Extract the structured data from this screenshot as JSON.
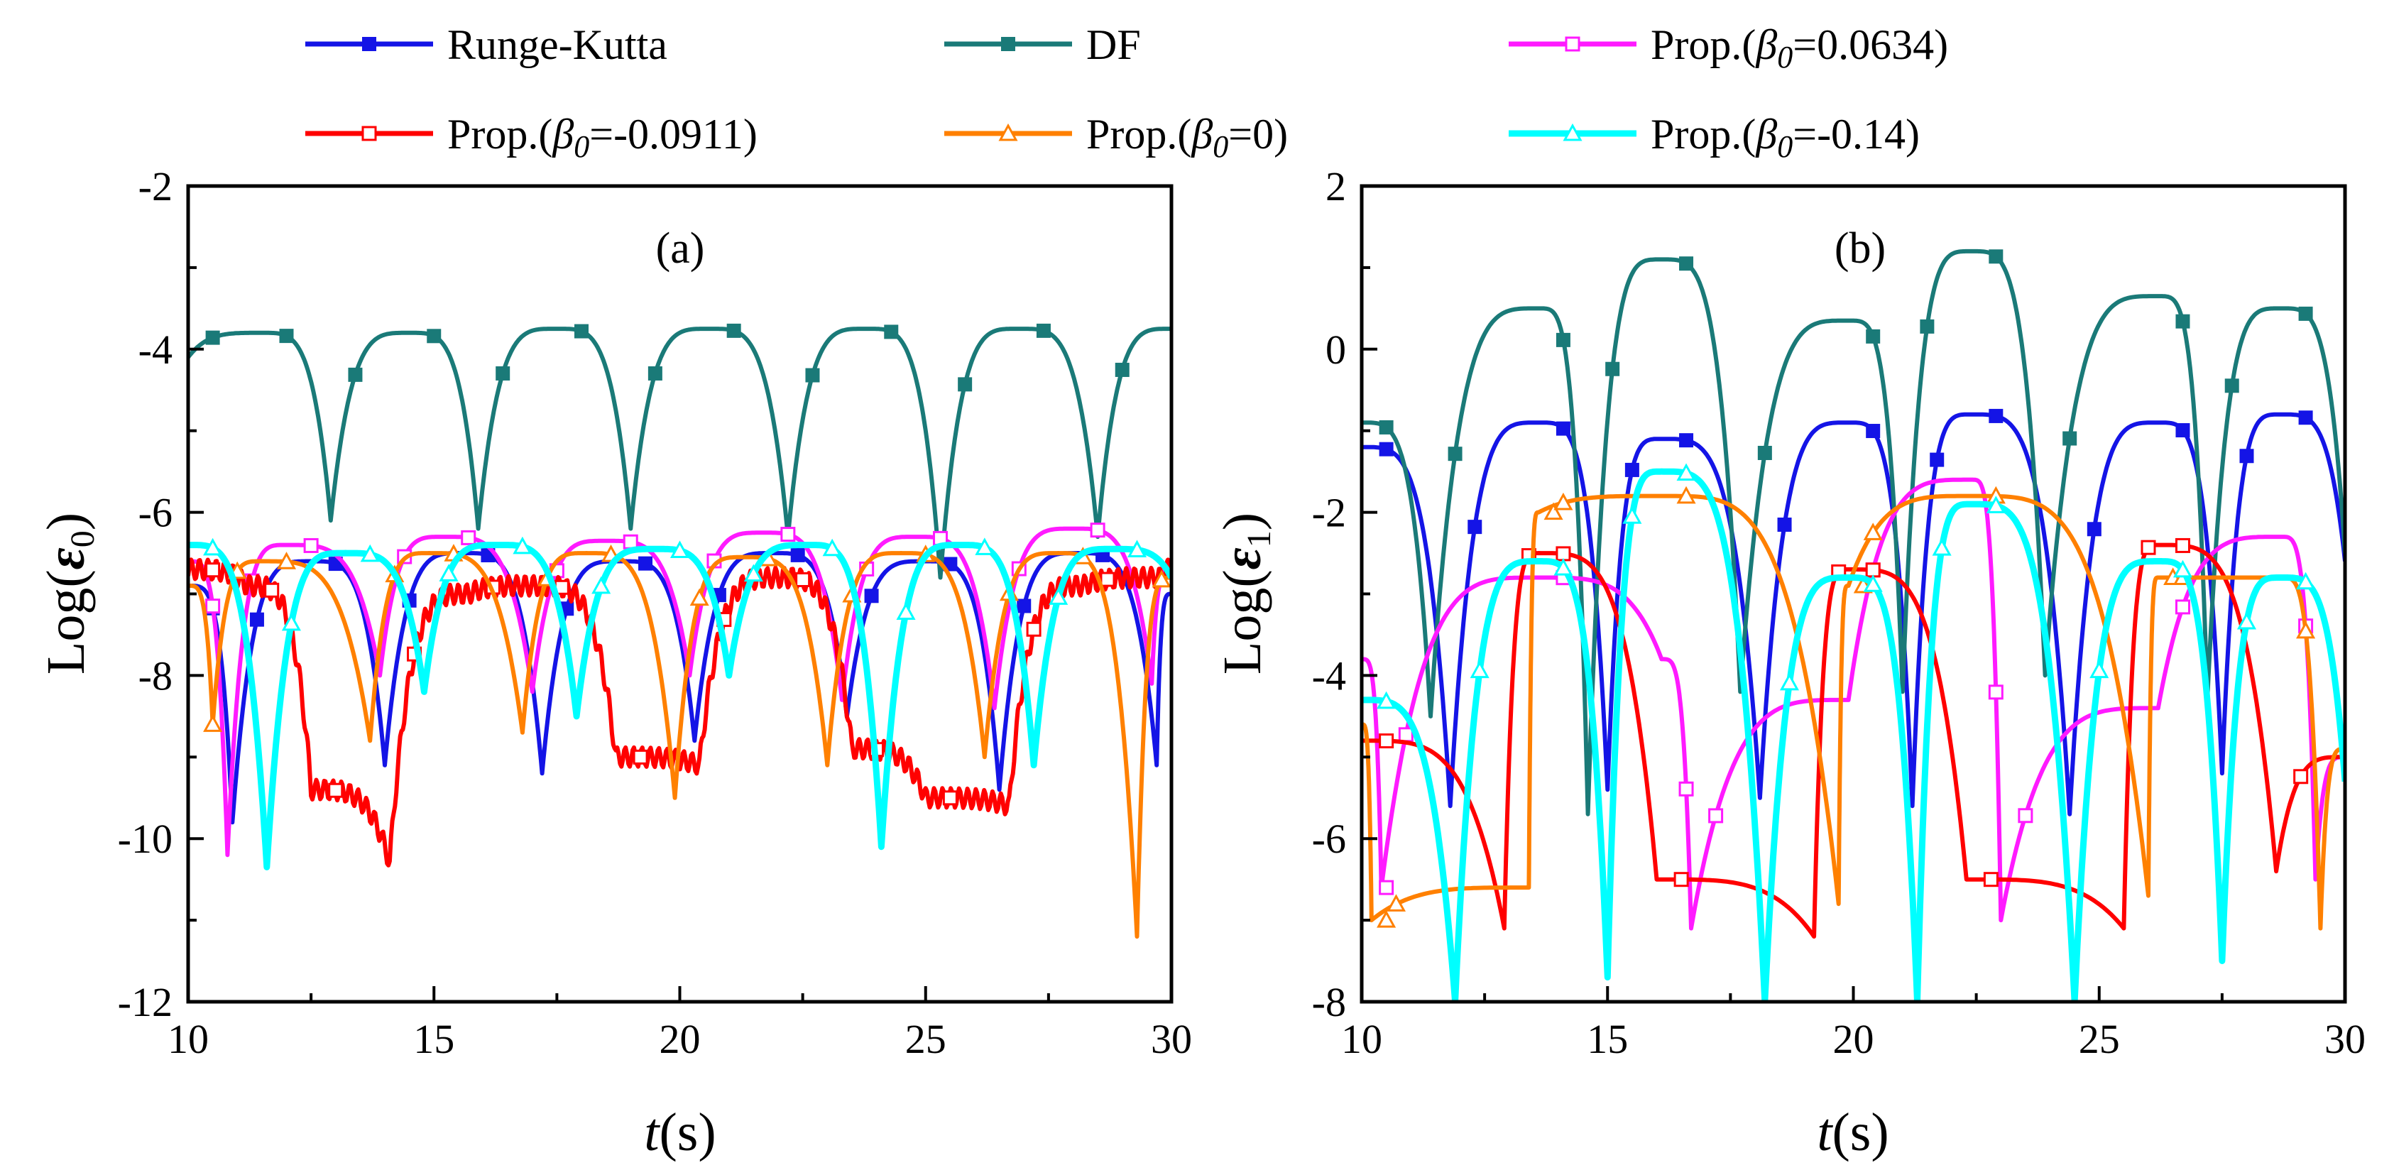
{
  "legend": [
    {
      "label": "Runge-Kutta",
      "color": "#1414e6",
      "marker": "square-filled"
    },
    {
      "label": "DF",
      "color": "#1a7a78",
      "marker": "square-filled"
    },
    {
      "label": "Prop.(β0=0.0634)",
      "color": "#ff1aff",
      "marker": "square-open"
    },
    {
      "label": "Prop.(β0=-0.0911)",
      "color": "#ff0000",
      "marker": "square-open"
    },
    {
      "label": "Prop.(β0=0)",
      "color": "#ff8000",
      "marker": "triangle-open"
    },
    {
      "label": "Prop.(β0=-0.14)",
      "color": "#00ffff",
      "marker": "triangle-open"
    }
  ],
  "chart_data": [
    {
      "type": "line",
      "panel": "(a)",
      "xlabel": "t(s)",
      "ylabel": "Log(ε0)",
      "xlim": [
        10,
        30
      ],
      "ylim": [
        -12,
        -2
      ],
      "xticks": [
        10,
        15,
        20,
        25,
        30
      ],
      "yticks": [
        -2,
        -4,
        -6,
        -8,
        -10,
        -12
      ],
      "series": [
        {
          "name": "Runge-Kutta",
          "period": 3.15,
          "phase": 0.35,
          "base": -6.6,
          "amp": 0.25,
          "dip": -9.5,
          "x_approx": [
            10,
            10.9,
            12.5,
            14.0,
            15.6,
            17.2,
            18.8,
            20.3,
            21.9,
            23.4,
            25.0,
            26.5,
            28.1,
            29.7,
            30
          ],
          "y_approx": [
            -6.9,
            -9.8,
            -6.6,
            -9.1,
            -6.5,
            -9.2,
            -6.6,
            -8.8,
            -6.5,
            -8.5,
            -6.6,
            -9.4,
            -6.5,
            -9.1,
            -7.0
          ]
        },
        {
          "name": "DF",
          "period": 3.15,
          "phase": 0.02,
          "base": -3.75,
          "amp": 0.0,
          "dip": -6.1,
          "x_approx": [
            10,
            11.5,
            12.9,
            14.5,
            15.9,
            17.5,
            19.0,
            20.6,
            22.2,
            23.8,
            25.3,
            26.9,
            28.5,
            30
          ],
          "y_approx": [
            -4.1,
            -3.8,
            -6.1,
            -3.8,
            -6.2,
            -3.75,
            -6.2,
            -3.75,
            -6.3,
            -3.75,
            -6.8,
            -3.75,
            -6.3,
            -3.75
          ]
        },
        {
          "name": "Prop.(β0=0.0634)",
          "period": 3.15,
          "phase": 0.75,
          "base": -6.25,
          "amp": 0.2,
          "dip": -10.2,
          "x_approx": [
            10,
            10.8,
            12.0,
            13.9,
            15.2,
            17.0,
            18.5,
            20.2,
            21.7,
            23.3,
            24.8,
            26.4,
            28.0,
            29.6,
            30
          ],
          "y_approx": [
            -6.6,
            -10.2,
            -6.4,
            -8.0,
            -6.3,
            -8.2,
            -6.35,
            -8.0,
            -6.25,
            -8.3,
            -6.3,
            -8.4,
            -6.2,
            -8.1,
            -6.7
          ]
        },
        {
          "name": "Prop.(β0=-0.0911)",
          "period": 3.15,
          "phase": 1.25,
          "base": -7.0,
          "amp": 0.3,
          "dip": -10.3,
          "x_approx": [
            10,
            11.2,
            12.5,
            14.1,
            15.7,
            17.1,
            18.7,
            20.4,
            22.0,
            23.5,
            25.0,
            26.7,
            28.2,
            29.8,
            30
          ],
          "y_approx": [
            -6.7,
            -6.9,
            -9.4,
            -10.3,
            -7.0,
            -6.9,
            -9.0,
            -9.1,
            -6.8,
            -8.9,
            -9.5,
            -9.6,
            -6.9,
            -6.8,
            -6.7
          ]
        },
        {
          "name": "Prop.(β0=0)",
          "period": 3.15,
          "phase": 0.2,
          "base": -6.55,
          "amp": 0.15,
          "dip": -9.5,
          "x_approx": [
            10,
            10.5,
            11.5,
            13.7,
            14.9,
            16.8,
            18.1,
            19.9,
            21.3,
            23.0,
            24.5,
            26.2,
            27.7,
            29.3,
            30
          ],
          "y_approx": [
            -6.9,
            -8.6,
            -6.6,
            -8.8,
            -6.5,
            -8.7,
            -6.5,
            -9.5,
            -6.55,
            -9.1,
            -6.5,
            -9.0,
            -6.5,
            -11.2,
            -6.8
          ]
        },
        {
          "name": "Prop.(β0=-0.14)",
          "period": 3.15,
          "phase": 1.6,
          "base": -6.45,
          "amp": 0.15,
          "dip": -10.0,
          "x_approx": [
            10,
            11.6,
            13.2,
            14.8,
            16.3,
            17.9,
            19.5,
            21.0,
            22.6,
            24.1,
            25.7,
            27.2,
            28.8,
            30
          ],
          "y_approx": [
            -6.4,
            -10.35,
            -6.5,
            -8.2,
            -6.4,
            -8.5,
            -6.45,
            -8.0,
            -6.4,
            -10.1,
            -6.4,
            -9.1,
            -6.45,
            -6.8
          ]
        }
      ],
      "annotations": []
    },
    {
      "type": "line",
      "panel": "(b)",
      "xlabel": "t(s)",
      "ylabel": "Log(ε1)",
      "xlim": [
        10,
        30
      ],
      "ylim": [
        -8,
        2
      ],
      "xticks": [
        10,
        15,
        20,
        25,
        30
      ],
      "yticks": [
        2,
        0,
        -2,
        -4,
        -6,
        -8
      ],
      "series": [
        {
          "name": "Runge-Kutta",
          "period": 3.15,
          "phase": 0.0,
          "base": -2.2,
          "amp": 0.0,
          "x_approx": [
            10,
            11.8,
            13.6,
            15.0,
            16.1,
            18.1,
            19.9,
            21.2,
            22.4,
            24.4,
            26.2,
            27.5,
            28.7,
            30
          ],
          "y_approx": [
            -1.2,
            -5.6,
            -0.9,
            -5.4,
            -1.1,
            -5.5,
            -0.9,
            -5.6,
            -0.8,
            -5.7,
            -0.9,
            -5.2,
            -0.8,
            -2.6
          ]
        },
        {
          "name": "DF",
          "period": 3.15,
          "phase": 0.0,
          "base": -2.0,
          "amp": 0.0,
          "x_approx": [
            10,
            11.4,
            13.6,
            14.6,
            16.1,
            17.7,
            19.9,
            21.0,
            22.4,
            23.9,
            26.2,
            27.2,
            28.7,
            30
          ],
          "y_approx": [
            -0.9,
            -4.5,
            0.5,
            -5.7,
            1.1,
            -4.2,
            0.35,
            -4.2,
            1.2,
            -4.0,
            0.65,
            -4.3,
            0.5,
            -2.5
          ]
        },
        {
          "name": "Prop.(β0=0.0634)",
          "period": 3.15,
          "phase": 0.0,
          "base": -4.5,
          "amp": 0.0,
          "x_approx": [
            10,
            10.4,
            13.6,
            16.1,
            16.7,
            19.9,
            22.4,
            23.0,
            26.2,
            28.7,
            29.4,
            30
          ],
          "y_approx": [
            -3.8,
            -6.6,
            -2.8,
            -3.8,
            -7.1,
            -4.3,
            -1.6,
            -7.0,
            -4.4,
            -2.3,
            -6.5,
            -5.0
          ]
        },
        {
          "name": "Prop.(β0=-0.0911)",
          "period": 3.15,
          "phase": 0.0,
          "base": -4.9,
          "amp": 0.0,
          "x_approx": [
            10,
            12.9,
            13.6,
            16.0,
            19.2,
            19.9,
            22.3,
            25.5,
            26.2,
            28.6,
            30
          ],
          "y_approx": [
            -4.8,
            -7.1,
            -2.5,
            -6.5,
            -7.2,
            -2.7,
            -6.5,
            -7.1,
            -2.4,
            -6.4,
            -5.0
          ]
        },
        {
          "name": "Prop.(β0=0)",
          "period": 3.15,
          "phase": 0.0,
          "base": -4.8,
          "amp": 0.0,
          "x_approx": [
            10,
            10.2,
            13.4,
            13.6,
            16.1,
            19.7,
            19.9,
            22.4,
            26.0,
            26.2,
            28.7,
            29.5,
            30
          ],
          "y_approx": [
            -4.6,
            -7.0,
            -6.6,
            -2.0,
            -1.8,
            -6.8,
            -2.9,
            -1.8,
            -6.7,
            -2.8,
            -2.8,
            -7.1,
            -4.9
          ]
        },
        {
          "name": "Prop.(β0=-0.14)",
          "period": 3.15,
          "phase": 0.0,
          "base": -5.5,
          "amp": 0.0,
          "x_approx": [
            10,
            11.9,
            13.6,
            15.0,
            16.1,
            18.2,
            19.9,
            21.3,
            22.4,
            24.5,
            26.2,
            27.5,
            28.7,
            30
          ],
          "y_approx": [
            -4.3,
            -8.0,
            -2.6,
            -7.7,
            -1.5,
            -8.0,
            -2.8,
            -8.0,
            -1.9,
            -8.0,
            -2.6,
            -7.5,
            -2.8,
            -5.3
          ]
        }
      ],
      "annotations": []
    }
  ]
}
